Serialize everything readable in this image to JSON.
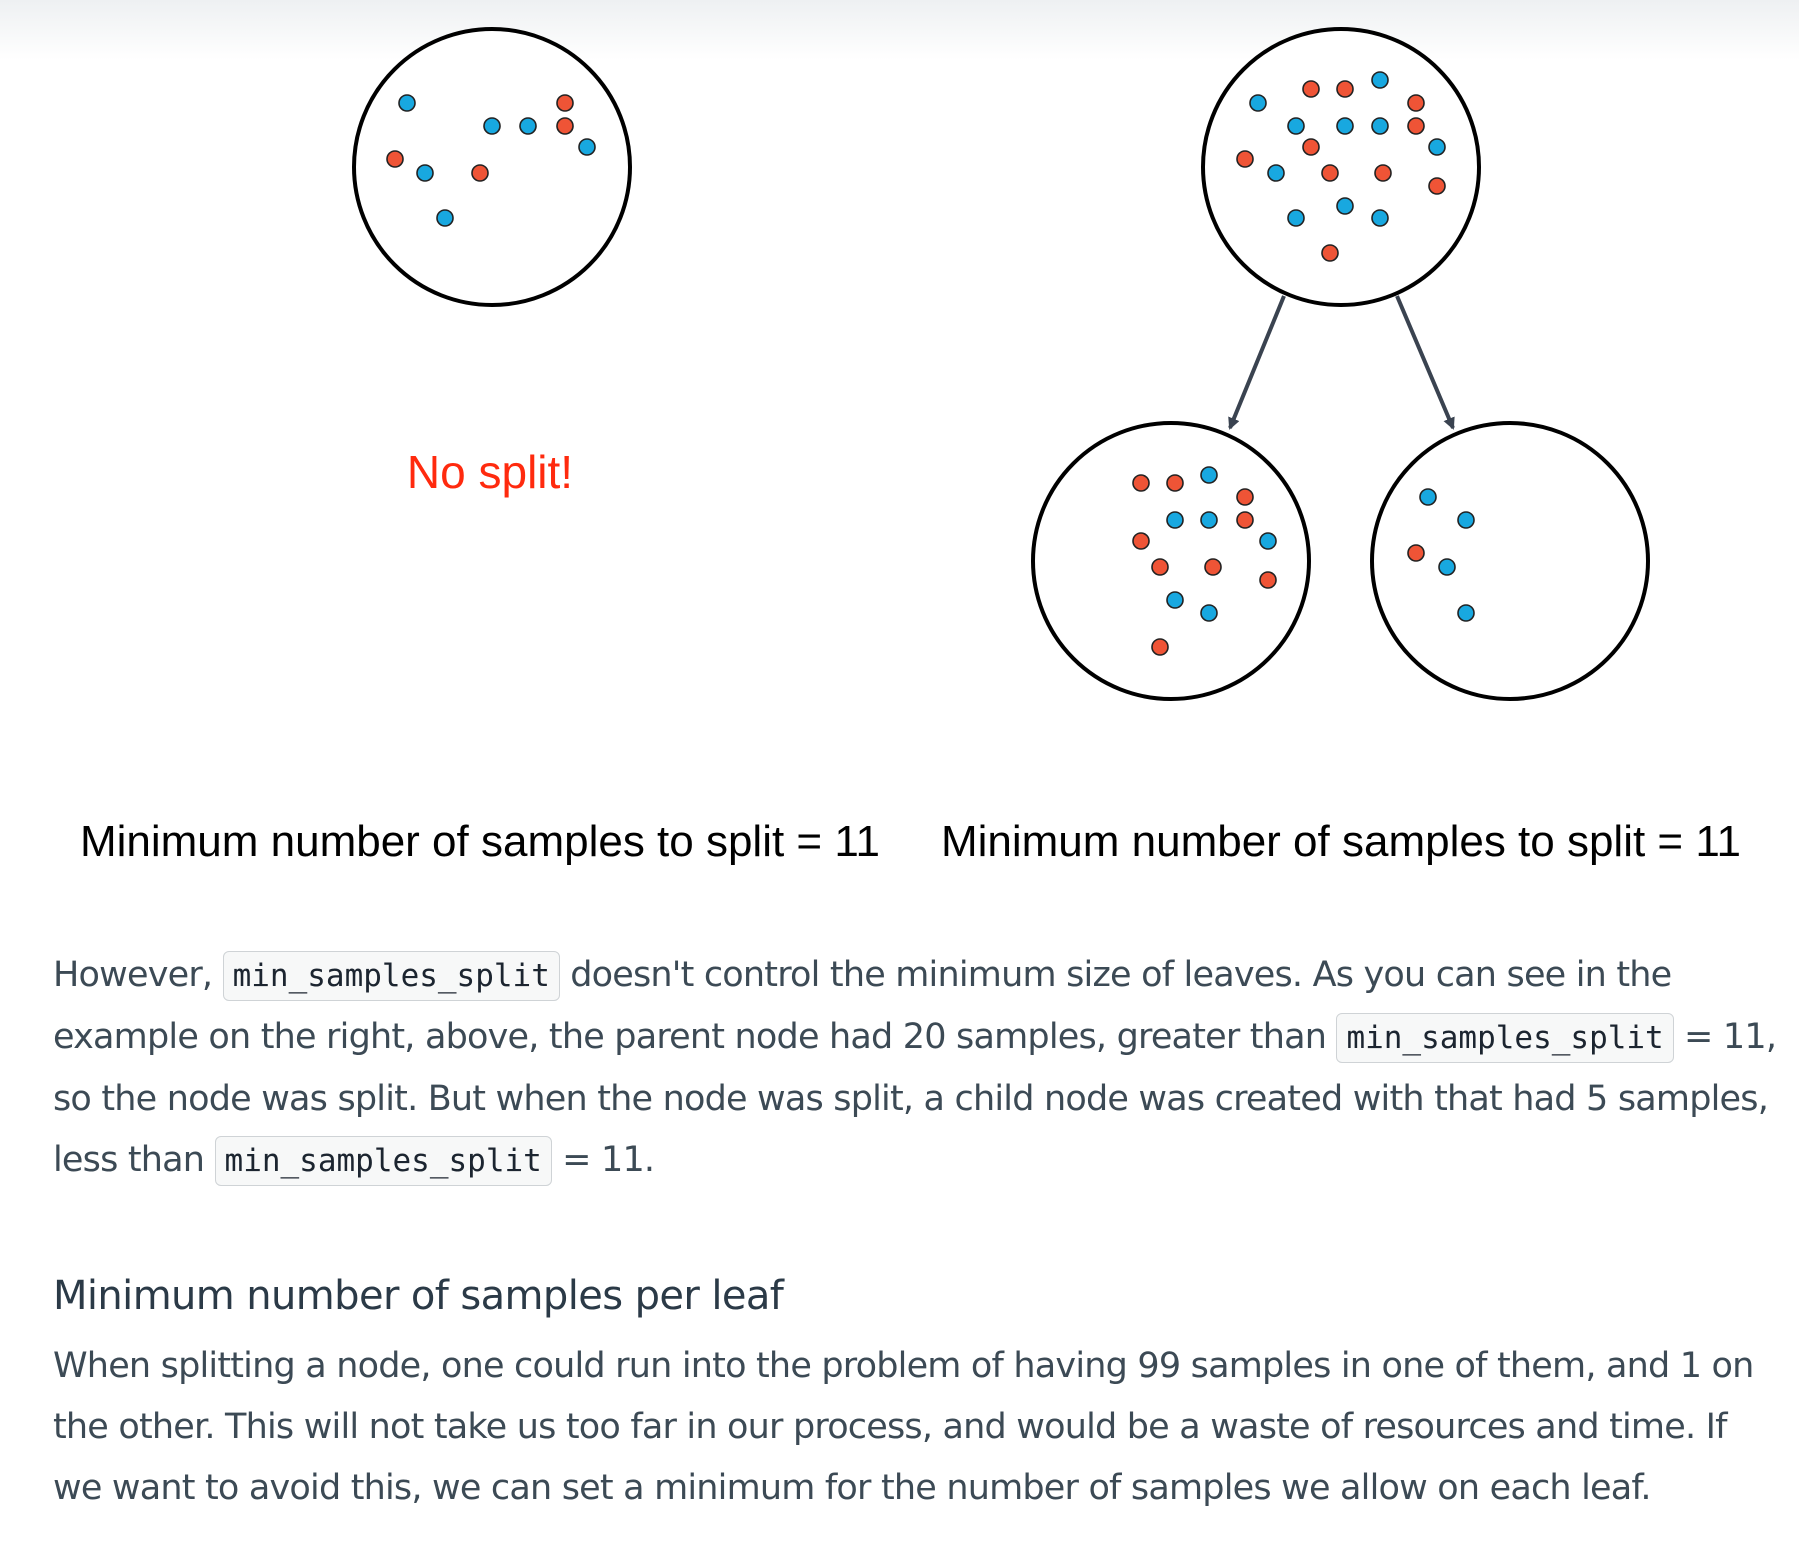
{
  "figure": {
    "left_panel": {
      "label": "No split!",
      "caption": "Minimum number of samples to split = 11",
      "node": {
        "blue": 6,
        "red": 4
      }
    },
    "right_panel": {
      "caption": "Minimum number of samples to split = 11",
      "parent": {
        "blue": 10,
        "red": 10
      },
      "left_child": {
        "blue": 6,
        "red": 9
      },
      "right_child": {
        "blue": 4,
        "red": 1
      }
    },
    "colors": {
      "blue": "#18a8e0",
      "red": "#ef5436",
      "outline": "#000000",
      "arrow": "#3a4350",
      "no_split_text": "#ff2a0e"
    }
  },
  "paragraph1": {
    "t1": "However,",
    "code1": "min_samples_split",
    "t2": "doesn't control the minimum size of leaves. As you can see in the example on the right, above, the parent node had 20 samples, greater than",
    "code2": "min_samples_split",
    "t3": "= 11, so the node was split. But when the node was split, a child node was created with that had 5 samples, less than",
    "code3": "min_samples_split",
    "t4": "= 11."
  },
  "section": {
    "heading": "Minimum number of samples per leaf",
    "body": "When splitting a node, one could run into the problem of having 99 samples in one of them, and 1 on the other. This will not take us too far in our process, and would be a waste of resources and time. If we want to avoid this, we can set a minimum for the number of samples we allow on each leaf."
  }
}
